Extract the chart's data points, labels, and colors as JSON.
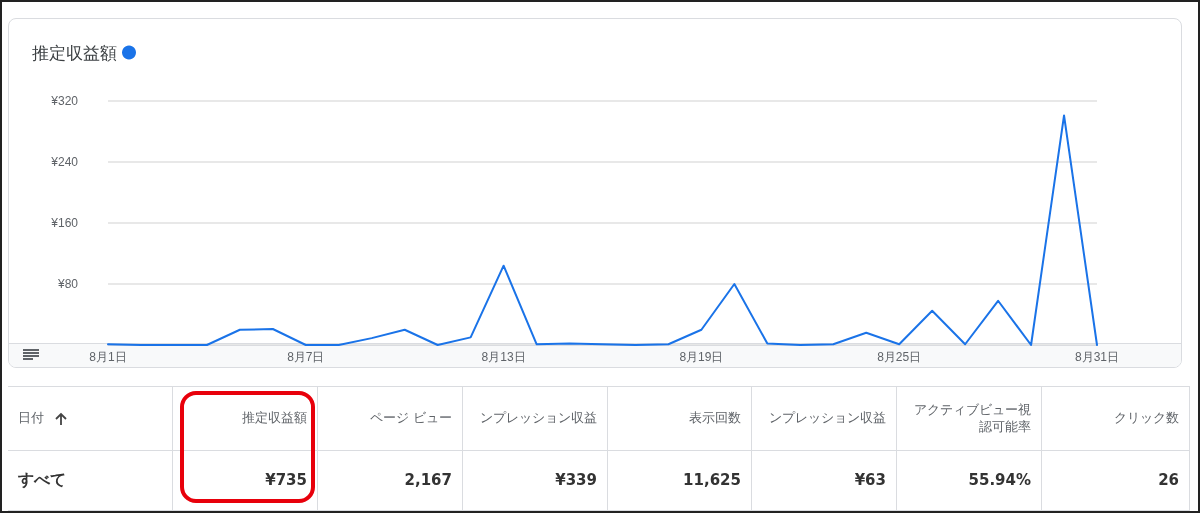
{
  "chart_data": [
    {
      "type": "line",
      "categories": [
        "8月1日",
        null,
        null,
        null,
        null,
        null,
        "8月7日",
        null,
        null,
        null,
        null,
        null,
        "8月13日",
        null,
        null,
        null,
        null,
        null,
        "8月19日",
        null,
        null,
        null,
        null,
        null,
        "8月25日",
        null,
        null,
        null,
        null,
        null,
        "8月31日"
      ],
      "series": [
        {
          "name": "推定収益額",
          "color": "#1a73e8",
          "values": [
            1,
            0,
            0,
            0,
            20,
            21,
            0,
            0,
            9,
            20,
            0,
            10,
            104,
            1,
            2,
            1,
            0,
            1,
            20,
            80,
            2,
            0,
            1,
            16,
            1,
            45,
            1,
            58,
            0,
            301,
            0
          ]
        }
      ],
      "ylim": [
        0,
        320
      ],
      "yticks": [
        {
          "value": 0,
          "label": null
        },
        {
          "value": 80,
          "label": "¥80"
        },
        {
          "value": 160,
          "label": "¥160"
        },
        {
          "value": 240,
          "label": "¥240"
        },
        {
          "value": 320,
          "label": "¥320"
        }
      ],
      "grid": "y",
      "legend": "top left",
      "marker": "none",
      "line_style": "solid"
    },
    {
      "type": "other",
      "annotations": [
        "日付",
        "推定収益額",
        "ページ ビュー",
        "ンプレッション収益",
        "表示回数",
        "ンプレッション収益",
        "アクティブビュー視認可能率",
        "クリック数",
        "すべて",
        "¥735",
        "2,167",
        "¥339",
        "11,625",
        "¥63",
        "55.94%",
        "26"
      ]
    }
  ]
}
